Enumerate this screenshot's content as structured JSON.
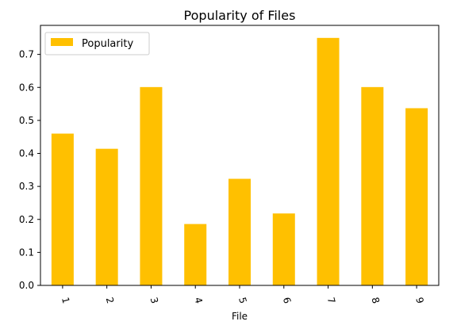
{
  "chart_data": {
    "type": "bar",
    "title": "Popularity of Files",
    "xlabel": "File",
    "ylabel": "",
    "categories": [
      "1",
      "2",
      "3",
      "4",
      "5",
      "6",
      "7",
      "8",
      "9"
    ],
    "series": [
      {
        "name": "Popularity",
        "values": [
          0.46,
          0.414,
          0.601,
          0.186,
          0.323,
          0.218,
          0.75,
          0.601,
          0.537
        ]
      }
    ],
    "yticks": [
      "0.0",
      "0.1",
      "0.2",
      "0.3",
      "0.4",
      "0.5",
      "0.6",
      "0.7"
    ],
    "ylim": [
      0,
      0.788
    ],
    "grid": false,
    "legend": "top-left",
    "colors": {
      "bar": "#ffc000",
      "axis": "#000000",
      "legend_border": "#cccccc"
    }
  }
}
